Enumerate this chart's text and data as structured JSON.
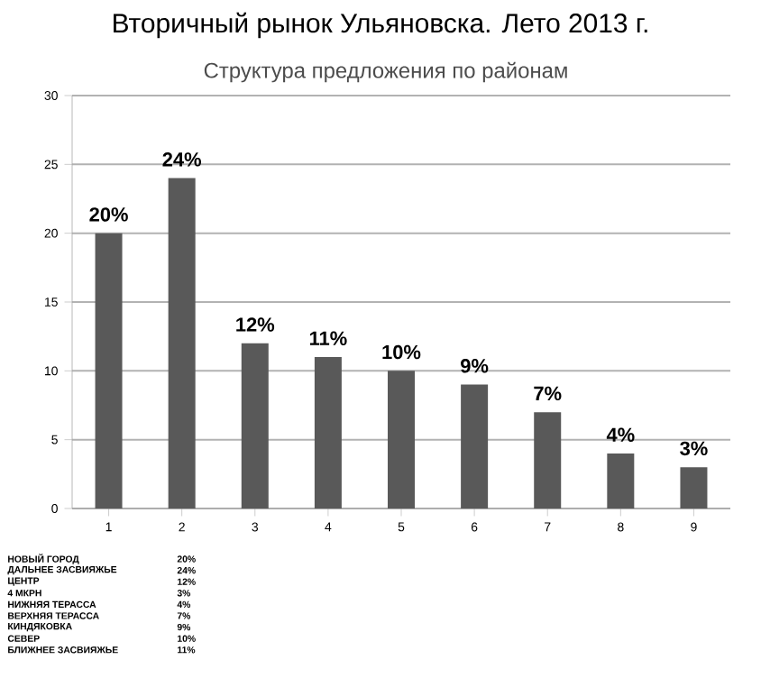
{
  "chart_data": {
    "type": "bar",
    "title": "Вторичный рынок Ульяновска. Лето 2013 г.",
    "subtitle": "Структура предложения по районам",
    "categories": [
      "1",
      "2",
      "3",
      "4",
      "5",
      "6",
      "7",
      "8",
      "9"
    ],
    "values": [
      20,
      24,
      12,
      11,
      10,
      9,
      7,
      4,
      3
    ],
    "value_labels": [
      "20%",
      "24%",
      "12%",
      "11%",
      "10%",
      "9%",
      "7%",
      "4%",
      "3%"
    ],
    "color": "#595959",
    "ylim": [
      0,
      30
    ],
    "yticks": [
      0,
      5,
      10,
      15,
      20,
      25,
      30
    ],
    "grid": "y",
    "annotations": [
      "НОВЫЙ ГОРОД",
      "20%",
      "ДАЛЬНЕЕ ЗАСВИЯЖЬЕ",
      "24%",
      "ЦЕНТР",
      "12%",
      "4 МКРН",
      "3%",
      "НИЖНЯЯ ТЕРАССА",
      "4%",
      "ВЕРХНЯЯ ТЕРАССА",
      "7%",
      "КИНДЯКОВКА",
      "9%",
      "СЕВЕР",
      "10%",
      "БЛИЖНЕЕ ЗАСВИЯЖЬЕ",
      "11%"
    ]
  }
}
